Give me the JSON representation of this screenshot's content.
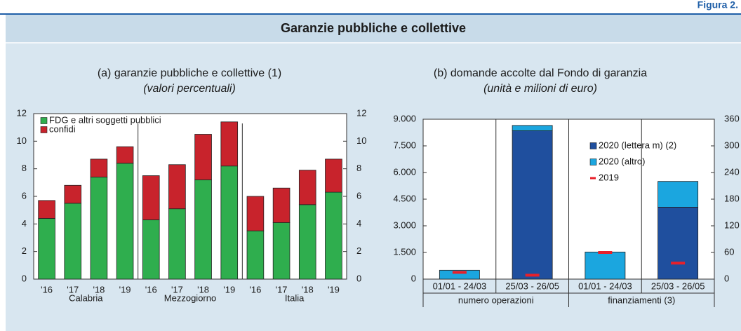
{
  "header": {
    "figure_label": "Figura 2.",
    "title": "Garanzie pubbliche e collettive"
  },
  "chart_data": [
    {
      "type": "bar",
      "stacked": true,
      "title": "(a) garanzie pubbliche e collettive (1)",
      "subtitle": "(valori percentuali)",
      "categories": [
        "'16",
        "'17",
        "'18",
        "'19",
        "'16",
        "'17",
        "'18",
        "'19",
        "'16",
        "'17",
        "'18",
        "'19"
      ],
      "groups": [
        "Calabria",
        "Mezzogiorno",
        "Italia"
      ],
      "series": [
        {
          "name": "FDG e altri soggetti pubblici",
          "color": "#2fae4e",
          "values": [
            4.4,
            5.5,
            7.4,
            8.4,
            4.3,
            5.1,
            7.2,
            8.2,
            3.5,
            4.1,
            5.4,
            6.3
          ]
        },
        {
          "name": "confidi",
          "color": "#c8232c",
          "values": [
            1.3,
            1.3,
            1.3,
            1.2,
            3.2,
            3.2,
            3.3,
            3.2,
            2.5,
            2.5,
            2.5,
            2.4
          ]
        }
      ],
      "ylim": [
        0,
        12
      ],
      "yticks": [
        0,
        2,
        4,
        6,
        8,
        10,
        12
      ],
      "y2lim": [
        0,
        12
      ],
      "y2ticks": [
        0,
        2,
        4,
        6,
        8,
        10,
        12
      ],
      "legend": "top-left"
    },
    {
      "type": "bar",
      "stacked": true,
      "title": "(b) domande accolte dal Fondo di garanzia",
      "subtitle": "(unità e milioni di euro)",
      "categories": [
        "01/01 - 24/03",
        "25/03 - 26/05",
        "01/01 - 24/03",
        "25/03 - 26/05"
      ],
      "groups": [
        "numero operazioni",
        "finanziamenti (3)"
      ],
      "group_axis": [
        "y",
        "y2"
      ],
      "series": [
        {
          "name": "2020 (lettera m) (2)",
          "color": "#1f4f9e",
          "values": [
            null,
            8350,
            null,
            162
          ]
        },
        {
          "name": "2020 (altro)",
          "color": "#1ba6df",
          "values": [
            500,
            300,
            61,
            58
          ]
        },
        {
          "name": "2019",
          "color": "#e8202a",
          "mark": "dash",
          "values": [
            380,
            220,
            60,
            36
          ]
        }
      ],
      "ylim": [
        0,
        9000
      ],
      "yticks": [
        0,
        {
          "value": 1500,
          "label": "1.500"
        },
        {
          "value": 3000,
          "label": "3.000"
        },
        {
          "value": 4500,
          "label": "4.500"
        },
        {
          "value": 6000,
          "label": "6.000"
        },
        {
          "value": 7500,
          "label": "7.500"
        },
        {
          "value": 9000,
          "label": "9.000"
        }
      ],
      "y2lim": [
        0,
        360
      ],
      "y2ticks": [
        0,
        60,
        120,
        180,
        240,
        300,
        360
      ],
      "legend": "top-right"
    }
  ]
}
